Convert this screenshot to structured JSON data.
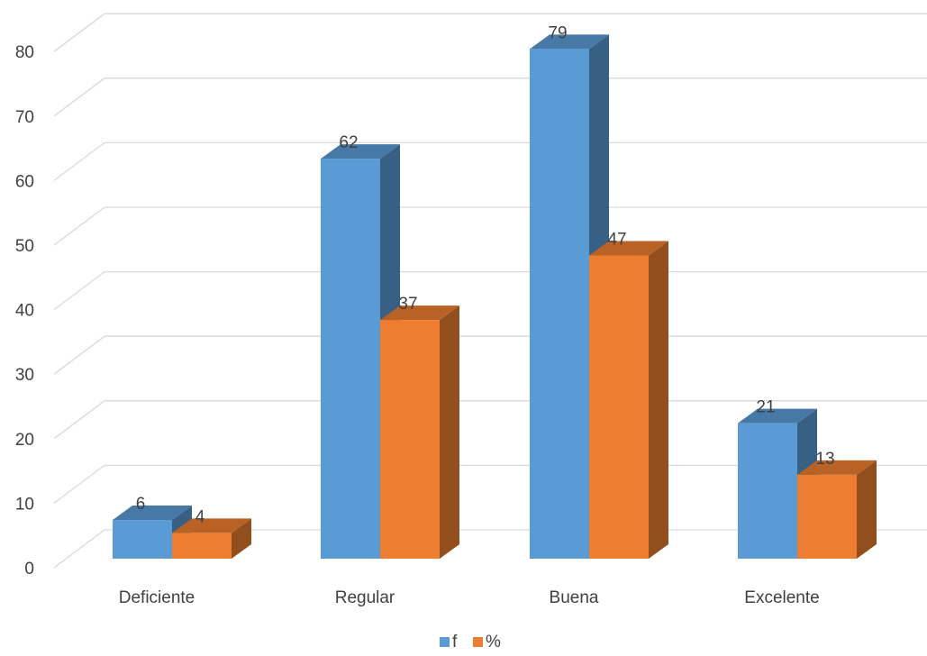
{
  "chart_data": {
    "type": "bar",
    "title": "",
    "xlabel": "",
    "ylabel": "",
    "categories": [
      "Deficiente",
      "Regular",
      "Buena",
      "Excelente"
    ],
    "series": [
      {
        "name": "f",
        "values": [
          6,
          62,
          79,
          21
        ],
        "color": "#5b9bd5"
      },
      {
        "name": "%",
        "values": [
          4,
          37,
          47,
          13
        ],
        "color": "#ed7d31"
      }
    ],
    "ylim": [
      0,
      80
    ],
    "yticks": [
      "0",
      "10",
      "20",
      "30",
      "40",
      "50",
      "60",
      "70",
      "80"
    ],
    "data_labels": true,
    "grid": true,
    "legend": "bottom",
    "style": "3d-clustered-column"
  }
}
